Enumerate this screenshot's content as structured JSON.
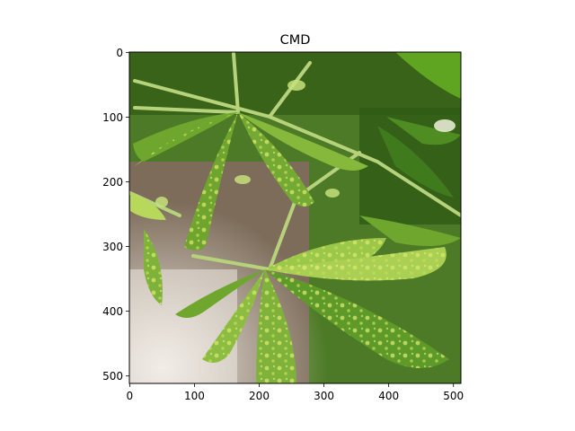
{
  "figure": {
    "title": "CMD"
  },
  "image_axes": {
    "x_ticks": [
      "0",
      "100",
      "200",
      "300",
      "400",
      "500"
    ],
    "y_ticks": [
      "0",
      "100",
      "200",
      "300",
      "400",
      "500"
    ],
    "x_range": [
      0,
      512
    ],
    "y_range": [
      0,
      512
    ],
    "y_inverted": true
  },
  "photo": {
    "subject": "cassava leaves",
    "palette": {
      "leaf_dark": "#3f7a1c",
      "leaf_mid": "#6fa52f",
      "leaf_light": "#b7d85a",
      "mottle_yellow": "#d9e66a",
      "soil": "#8a7a6a",
      "soil_light": "#d8d0c8",
      "stem": "#a8c86a"
    }
  }
}
